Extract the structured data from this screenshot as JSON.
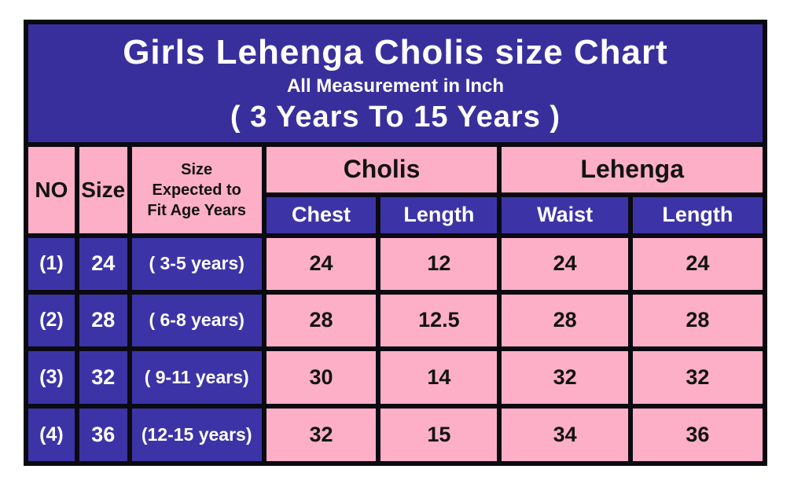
{
  "title": {
    "line1": "Girls Lehenga Cholis size Chart",
    "line2": "All Measurement in Inch",
    "line3": "( 3 Years To 15 Years )"
  },
  "headers": {
    "no": "NO",
    "size": "Size",
    "age": "Size\nExpected to\nFit Age Years",
    "cholis": "Cholis",
    "lehenga": "Lehenga",
    "chest": "Chest",
    "cholis_length": "Length",
    "waist": "Waist",
    "lehenga_length": "Length"
  },
  "rows": [
    {
      "no": "(1)",
      "size": "24",
      "age": "( 3-5 years)",
      "chest": "24",
      "cholis_length": "12",
      "waist": "24",
      "lehenga_length": "24"
    },
    {
      "no": "(2)",
      "size": "28",
      "age": "( 6-8 years)",
      "chest": "28",
      "cholis_length": "12.5",
      "waist": "28",
      "lehenga_length": "28"
    },
    {
      "no": "(3)",
      "size": "32",
      "age": "( 9-11 years)",
      "chest": "30",
      "cholis_length": "14",
      "waist": "32",
      "lehenga_length": "32"
    },
    {
      "no": "(4)",
      "size": "36",
      "age": "(12-15 years)",
      "chest": "32",
      "cholis_length": "15",
      "waist": "34",
      "lehenga_length": "36"
    }
  ],
  "colors": {
    "title_blue": "#392f9c",
    "cell_blue": "#3c34a6",
    "pink": "#fdafc7",
    "border_black": "#0a0a10",
    "text_dark": "#131313",
    "text_light": "#ffffff"
  },
  "chart_data": {
    "type": "table",
    "title": "Girls Lehenga Cholis size Chart",
    "subtitle": "All Measurement in Inch",
    "age_range": "( 3 Years To 15 Years )",
    "unit": "Inch",
    "column_groups": [
      {
        "label": "Cholis",
        "columns": [
          "Chest",
          "Length"
        ]
      },
      {
        "label": "Lehenga",
        "columns": [
          "Waist",
          "Length"
        ]
      }
    ],
    "columns": [
      "NO",
      "Size",
      "Size Expected to Fit Age Years",
      "Cholis Chest",
      "Cholis Length",
      "Lehenga Waist",
      "Lehenga Length"
    ],
    "rows": [
      [
        "(1)",
        24,
        "3-5 years",
        24,
        12,
        24,
        24
      ],
      [
        "(2)",
        28,
        "6-8 years",
        28,
        12.5,
        28,
        28
      ],
      [
        "(3)",
        32,
        "9-11 years",
        30,
        14,
        32,
        32
      ],
      [
        "(4)",
        36,
        "12-15 years",
        32,
        15,
        34,
        36
      ]
    ]
  }
}
